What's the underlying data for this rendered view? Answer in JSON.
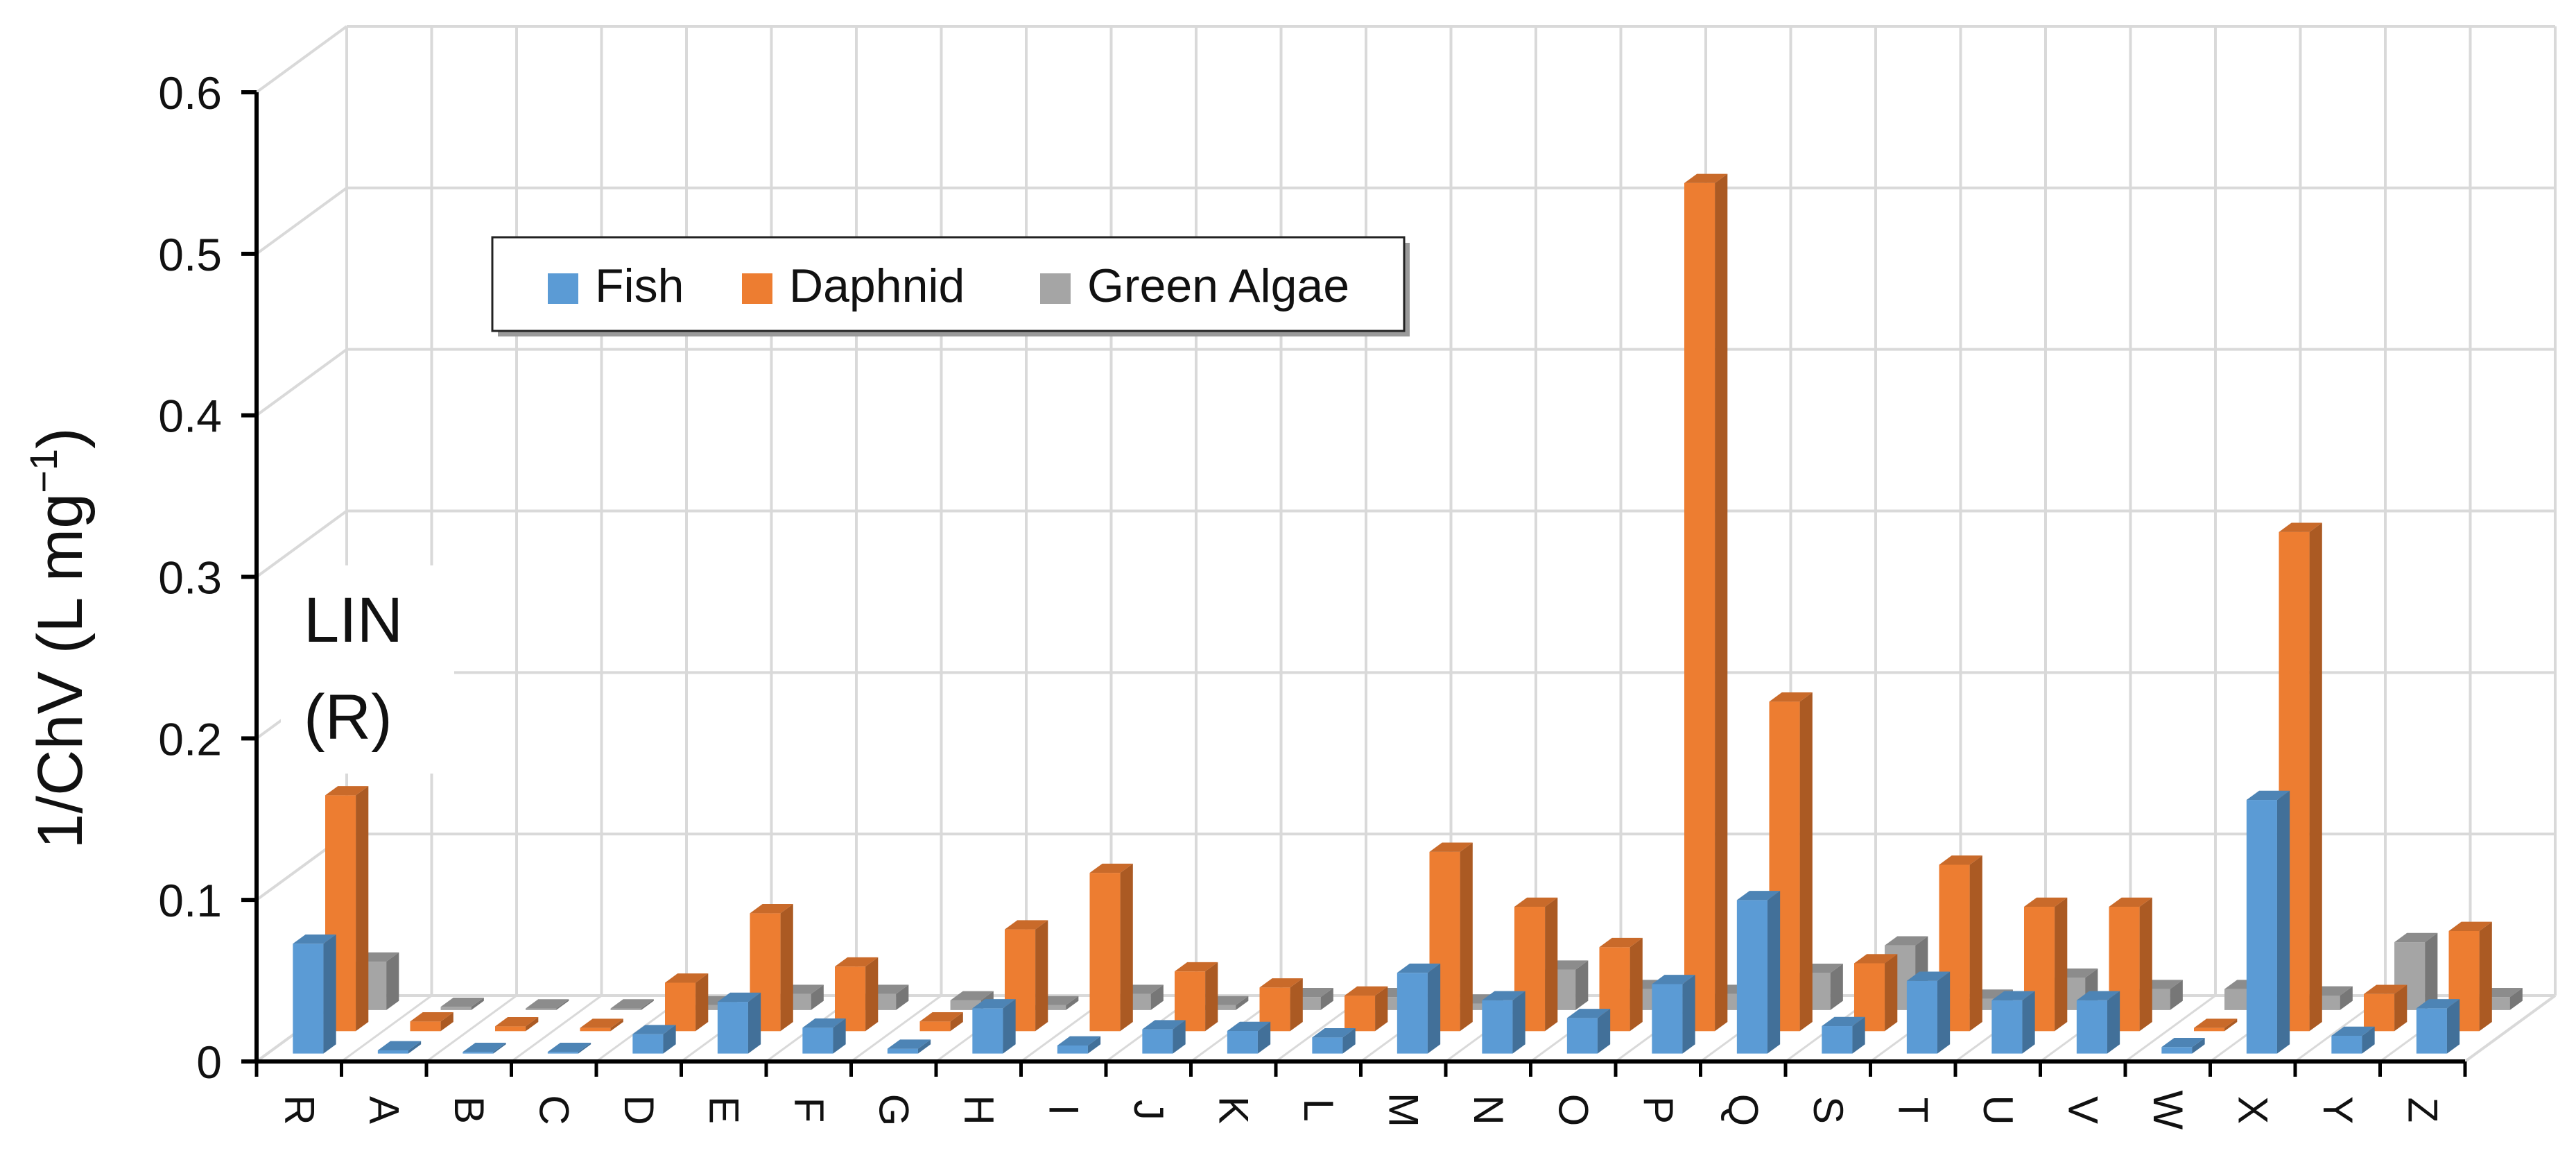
{
  "chart_data": {
    "type": "bar",
    "title": "",
    "annotation_line1": "LIN",
    "annotation_line2": "(R)",
    "xlabel": "",
    "ylabel": "1/ChV (L mg",
    "ylabel_superscript": "−1",
    "ylabel_close": ")",
    "ylim": [
      0,
      0.6
    ],
    "yticks": [
      "0",
      "0.1",
      "0.2",
      "0.3",
      "0.4",
      "0.5",
      "0.6"
    ],
    "grid": true,
    "legend_position": "top-left",
    "categories": [
      "R",
      "A",
      "B",
      "C",
      "D",
      "E",
      "F",
      "G",
      "H",
      "I",
      "J",
      "K",
      "L",
      "M",
      "N",
      "O",
      "P",
      "Q",
      "S",
      "T",
      "U",
      "V",
      "W",
      "X",
      "Y",
      "Z"
    ],
    "series": [
      {
        "name": "Fish",
        "color": "#5B9BD5",
        "values": [
          0.068,
          0.002,
          0.001,
          0.001,
          0.012,
          0.032,
          0.016,
          0.003,
          0.028,
          0.005,
          0.015,
          0.014,
          0.01,
          0.05,
          0.033,
          0.022,
          0.043,
          0.095,
          0.017,
          0.045,
          0.033,
          0.033,
          0.004,
          0.157,
          0.011,
          0.028
        ]
      },
      {
        "name": "Daphnid",
        "color": "#ED7D31",
        "values": [
          0.146,
          0.006,
          0.003,
          0.002,
          0.03,
          0.073,
          0.04,
          0.006,
          0.063,
          0.098,
          0.037,
          0.027,
          0.022,
          0.111,
          0.077,
          0.052,
          0.525,
          0.204,
          0.042,
          0.103,
          0.077,
          0.077,
          0.002,
          0.309,
          0.023,
          0.062
        ]
      },
      {
        "name": "Green Algae",
        "color": "#A5A5A5",
        "values": [
          0.03,
          0.002,
          0.001,
          0.001,
          0.003,
          0.01,
          0.01,
          0.006,
          0.003,
          0.01,
          0.003,
          0.008,
          0.008,
          0.004,
          0.025,
          0.013,
          0.01,
          0.023,
          0.04,
          0.007,
          0.02,
          0.013,
          0.013,
          0.009,
          0.042,
          0.008
        ]
      }
    ]
  }
}
